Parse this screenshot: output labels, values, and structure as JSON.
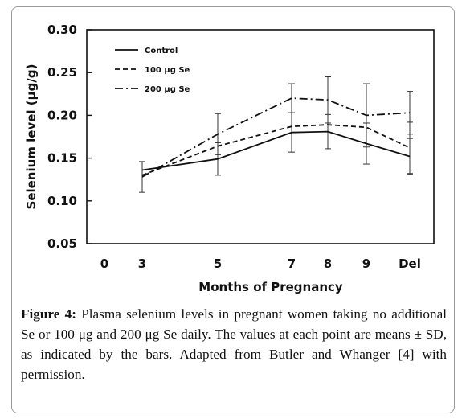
{
  "chart_data": {
    "type": "line",
    "xlabel": "Months of Pregnancy",
    "ylabel": "Selenium level (μg/g)",
    "ylim": [
      0.05,
      0.3
    ],
    "yticks": [
      "0.05",
      "0.10",
      "0.15",
      "0.20",
      "0.25",
      "0.30"
    ],
    "xticks": [
      "0",
      "3",
      "5",
      "7",
      "8",
      "9",
      "Del"
    ],
    "x": [
      "3",
      "5",
      "7",
      "8",
      "9",
      "Del"
    ],
    "legend_position": "top-left",
    "grid": false,
    "series": [
      {
        "name": "Control",
        "style": "solid",
        "values": [
          0.136,
          0.149,
          0.18,
          0.181,
          0.167,
          0.152
        ],
        "errors": [
          0.0,
          0.019,
          0.023,
          0.02,
          0.024,
          0.021
        ]
      },
      {
        "name": "100 μg Se",
        "style": "dashed",
        "values": [
          0.13,
          0.164,
          0.187,
          0.189,
          0.186,
          0.162
        ],
        "errors": [
          0.0,
          0.0,
          0.0,
          0.0,
          0.0,
          0.03
        ]
      },
      {
        "name": "200 μg Se",
        "style": "dashdot",
        "values": [
          0.128,
          0.178,
          0.22,
          0.218,
          0.2,
          0.203
        ],
        "errors": [
          0.018,
          0.024,
          0.017,
          0.027,
          0.037,
          0.025
        ]
      }
    ]
  },
  "caption": {
    "label": "Figure 4:",
    "text": "Plasma selenium levels in pregnant women taking no additional Se or 100 μg and 200 μg Se daily. The values at each point are means ± SD, as indicated by the bars. Adapted from Butler and Whanger [4] with permission."
  }
}
